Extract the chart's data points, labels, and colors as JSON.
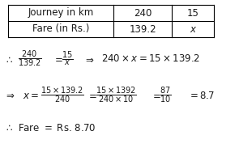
{
  "table": {
    "row1": [
      "Journey in km",
      "240",
      "15"
    ],
    "row2": [
      "Fare (in Rs.)",
      "139.2",
      "x"
    ]
  },
  "bg_color": "#ffffff",
  "text_color": "#1a1a1a",
  "fontsize": 8.5
}
